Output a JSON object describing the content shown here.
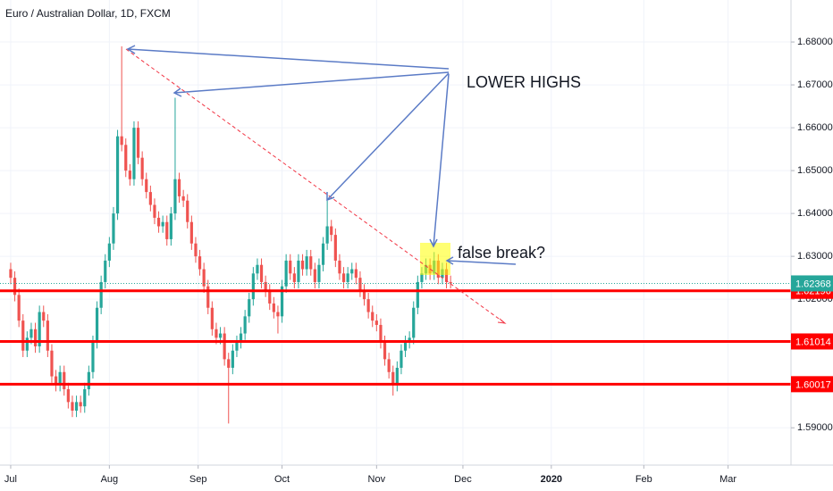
{
  "chart_data": {
    "type": "candlestick",
    "title": "Euro / Australian Dollar, 1D, FXCM",
    "up_color": "#26a69a",
    "down_color": "#ef5350",
    "open": [
      1.627,
      1.625,
      1.621,
      1.615,
      1.608,
      1.611,
      1.613,
      1.609,
      1.617,
      1.615,
      1.608,
      1.602,
      1.6,
      1.603,
      1.599,
      1.596,
      1.594,
      1.596,
      1.595,
      1.599,
      1.603,
      1.61,
      1.618,
      1.624,
      1.629,
      1.633,
      1.64,
      1.658,
      1.656,
      1.65,
      1.648,
      1.66,
      1.653,
      1.648,
      1.645,
      1.642,
      1.639,
      1.637,
      1.638,
      1.634,
      1.64,
      1.648,
      1.644,
      1.643,
      1.638,
      1.633,
      1.63,
      1.627,
      1.623,
      1.618,
      1.613,
      1.611,
      1.612,
      1.606,
      1.604,
      1.608,
      1.61,
      1.612,
      1.616,
      1.62,
      1.626,
      1.628,
      1.624,
      1.622,
      1.619,
      1.617,
      1.616,
      1.623,
      1.629,
      1.626,
      1.624,
      1.629,
      1.627,
      1.63,
      1.627,
      1.624,
      1.628,
      1.633,
      1.637,
      1.635,
      1.629,
      1.626,
      1.624,
      1.626,
      1.627,
      1.625,
      1.622,
      1.62,
      1.617,
      1.615,
      1.614,
      1.61,
      1.606,
      1.603,
      1.6,
      1.604,
      1.608,
      1.61,
      1.611,
      1.618,
      1.624,
      1.626,
      1.628,
      1.626,
      1.629,
      1.625,
      1.627,
      1.624
    ],
    "high": [
      1.6285,
      1.6265,
      1.6225,
      1.6165,
      1.6125,
      1.6145,
      1.6145,
      1.6185,
      1.6185,
      1.6165,
      1.6095,
      1.6035,
      1.6045,
      1.6045,
      1.6005,
      1.5975,
      1.5975,
      1.5975,
      1.6005,
      1.6045,
      1.6115,
      1.6195,
      1.6255,
      1.6305,
      1.6345,
      1.6415,
      1.6595,
      1.679,
      1.6575,
      1.6515,
      1.6615,
      1.6615,
      1.6545,
      1.6495,
      1.6465,
      1.6435,
      1.6405,
      1.6395,
      1.6395,
      1.6415,
      1.667,
      1.6495,
      1.6455,
      1.6445,
      1.6395,
      1.6345,
      1.6315,
      1.6285,
      1.6245,
      1.6195,
      1.6145,
      1.6135,
      1.6135,
      1.6075,
      1.6095,
      1.6115,
      1.6135,
      1.6175,
      1.6215,
      1.6275,
      1.6295,
      1.6295,
      1.6255,
      1.6235,
      1.6205,
      1.6185,
      1.6245,
      1.6305,
      1.6305,
      1.6275,
      1.6305,
      1.6305,
      1.6315,
      1.6315,
      1.6285,
      1.6295,
      1.6345,
      1.643,
      1.6385,
      1.6365,
      1.6305,
      1.6275,
      1.6275,
      1.6285,
      1.6285,
      1.6265,
      1.6235,
      1.6215,
      1.6185,
      1.6165,
      1.6155,
      1.6115,
      1.6075,
      1.6045,
      1.6055,
      1.6095,
      1.6115,
      1.6125,
      1.6195,
      1.6255,
      1.6275,
      1.6295,
      1.6295,
      1.631,
      1.6305,
      1.6285,
      1.6285,
      1.6255
    ],
    "low": [
      1.6235,
      1.6195,
      1.6135,
      1.6065,
      1.6065,
      1.6095,
      1.6075,
      1.6075,
      1.6135,
      1.6065,
      1.6005,
      1.5985,
      1.5985,
      1.5975,
      1.5945,
      1.5925,
      1.5925,
      1.5935,
      1.5935,
      1.5975,
      1.6015,
      1.6085,
      1.6165,
      1.6225,
      1.6275,
      1.6315,
      1.6385,
      1.6545,
      1.6485,
      1.6465,
      1.6465,
      1.6515,
      1.6465,
      1.6435,
      1.6405,
      1.6375,
      1.6355,
      1.6355,
      1.6325,
      1.6325,
      1.6385,
      1.6425,
      1.6415,
      1.6365,
      1.6315,
      1.6285,
      1.6255,
      1.6215,
      1.6165,
      1.6115,
      1.6095,
      1.6095,
      1.6045,
      1.591,
      1.6025,
      1.6065,
      1.6085,
      1.6105,
      1.6145,
      1.6185,
      1.6245,
      1.6225,
      1.6205,
      1.6175,
      1.6155,
      1.612,
      1.6145,
      1.6215,
      1.6245,
      1.6225,
      1.6225,
      1.6255,
      1.6255,
      1.6255,
      1.6225,
      1.6225,
      1.6265,
      1.6315,
      1.6335,
      1.6275,
      1.6245,
      1.6225,
      1.6225,
      1.6245,
      1.6235,
      1.6205,
      1.6185,
      1.6155,
      1.6135,
      1.6125,
      1.6085,
      1.6045,
      1.6015,
      1.5975,
      1.5985,
      1.6025,
      1.6065,
      1.6085,
      1.6095,
      1.6165,
      1.6225,
      1.6245,
      1.6245,
      1.6245,
      1.6235,
      1.6235,
      1.6225,
      1.6225
    ],
    "close": [
      1.625,
      1.621,
      1.615,
      1.608,
      1.611,
      1.613,
      1.609,
      1.617,
      1.615,
      1.608,
      1.602,
      1.6,
      1.603,
      1.599,
      1.596,
      1.594,
      1.596,
      1.595,
      1.599,
      1.603,
      1.61,
      1.618,
      1.624,
      1.629,
      1.633,
      1.64,
      1.658,
      1.656,
      1.65,
      1.648,
      1.66,
      1.653,
      1.648,
      1.645,
      1.642,
      1.639,
      1.637,
      1.638,
      1.634,
      1.64,
      1.648,
      1.644,
      1.643,
      1.638,
      1.633,
      1.63,
      1.627,
      1.623,
      1.618,
      1.613,
      1.611,
      1.612,
      1.606,
      1.604,
      1.608,
      1.61,
      1.612,
      1.616,
      1.62,
      1.626,
      1.628,
      1.624,
      1.622,
      1.619,
      1.617,
      1.616,
      1.623,
      1.629,
      1.626,
      1.624,
      1.629,
      1.627,
      1.63,
      1.627,
      1.624,
      1.628,
      1.633,
      1.637,
      1.635,
      1.629,
      1.626,
      1.624,
      1.626,
      1.627,
      1.625,
      1.622,
      1.62,
      1.617,
      1.615,
      1.614,
      1.61,
      1.606,
      1.603,
      1.6,
      1.604,
      1.608,
      1.61,
      1.611,
      1.618,
      1.624,
      1.626,
      1.628,
      1.626,
      1.629,
      1.625,
      1.627,
      1.624,
      1.62368
    ],
    "xlim": [
      -2.6,
      189.8
    ],
    "xticks": [
      {
        "value": 0,
        "label": "Jul"
      },
      {
        "value": 24,
        "label": "Aug"
      },
      {
        "value": 45.6,
        "label": "Sep"
      },
      {
        "value": 66,
        "label": "Oct"
      },
      {
        "value": 89,
        "label": "Nov"
      },
      {
        "value": 110,
        "label": "Dec"
      },
      {
        "value": 131.5,
        "label": "2020"
      },
      {
        "value": 154,
        "label": "Feb"
      },
      {
        "value": 174.5,
        "label": "Mar"
      }
    ],
    "ylim": [
      1.5815,
      1.6898
    ],
    "yticks": [
      {
        "value": 1.59,
        "label": "1.59000"
      },
      {
        "value": 1.6,
        "label": "1.60000"
      },
      {
        "value": 1.61,
        "label": "1.61000"
      },
      {
        "value": 1.62,
        "label": "1.62000"
      },
      {
        "value": 1.63,
        "label": "1.63000"
      },
      {
        "value": 1.64,
        "label": "1.64000"
      },
      {
        "value": 1.65,
        "label": "1.65000"
      },
      {
        "value": 1.66,
        "label": "1.66000"
      },
      {
        "value": 1.67,
        "label": "1.67000"
      },
      {
        "value": 1.68,
        "label": "1.68000"
      }
    ],
    "grid": true,
    "levels": [
      {
        "value": 1.62196,
        "color": "#ff0000"
      },
      {
        "value": 1.61014,
        "color": "#ff0000"
      },
      {
        "value": 1.60017,
        "color": "#ff0000"
      }
    ],
    "last_price": {
      "value": 1.62368,
      "color": "#26a69a"
    },
    "annotations": [
      "LOWER HIGHS",
      "false break?"
    ]
  }
}
